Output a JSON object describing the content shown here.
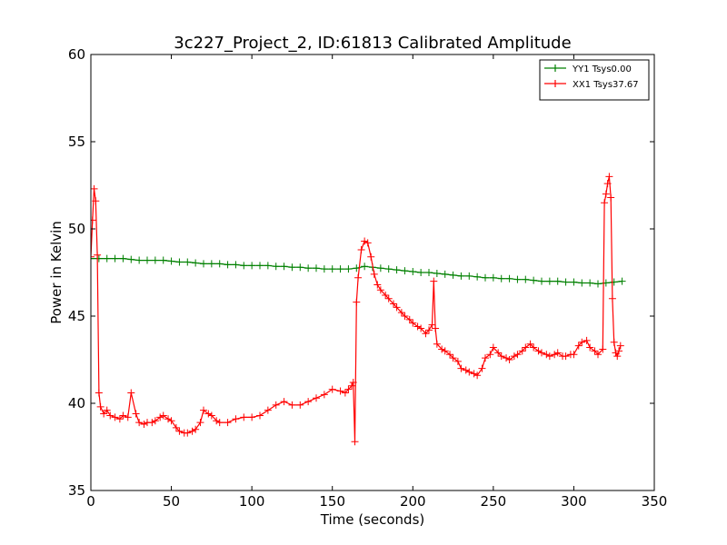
{
  "chart_data": {
    "type": "line",
    "title": "3c227_Project_2, ID:61813 Calibrated Amplitude",
    "xlabel": "Time (seconds)",
    "ylabel": "Power in Kelvin",
    "xlim": [
      0,
      350
    ],
    "ylim": [
      35,
      60
    ],
    "xticks": [
      "0",
      "50",
      "100",
      "150",
      "200",
      "250",
      "300",
      "350"
    ],
    "yticks": [
      "35",
      "40",
      "45",
      "50",
      "55",
      "60"
    ],
    "grid": false,
    "legend_position": "top-right",
    "marker": "+",
    "series": [
      {
        "name": "YY1 Tsys0.00",
        "color": "#008000",
        "x": [
          0,
          5,
          10,
          15,
          20,
          25,
          30,
          35,
          40,
          45,
          50,
          55,
          60,
          65,
          70,
          75,
          80,
          85,
          90,
          95,
          100,
          105,
          110,
          115,
          120,
          125,
          130,
          135,
          140,
          145,
          150,
          155,
          160,
          165,
          170,
          175,
          180,
          185,
          190,
          195,
          200,
          205,
          210,
          215,
          220,
          225,
          230,
          235,
          240,
          245,
          250,
          255,
          260,
          265,
          270,
          275,
          280,
          285,
          290,
          295,
          300,
          305,
          310,
          315,
          320,
          325,
          330
        ],
        "y": [
          48.3,
          48.3,
          48.3,
          48.3,
          48.3,
          48.25,
          48.2,
          48.2,
          48.2,
          48.2,
          48.15,
          48.1,
          48.1,
          48.05,
          48.0,
          48.0,
          48.0,
          47.95,
          47.95,
          47.9,
          47.9,
          47.9,
          47.9,
          47.85,
          47.85,
          47.8,
          47.8,
          47.75,
          47.75,
          47.7,
          47.7,
          47.7,
          47.7,
          47.75,
          47.85,
          47.8,
          47.75,
          47.7,
          47.65,
          47.6,
          47.55,
          47.5,
          47.5,
          47.45,
          47.4,
          47.35,
          47.3,
          47.3,
          47.25,
          47.2,
          47.2,
          47.15,
          47.15,
          47.1,
          47.1,
          47.05,
          47.0,
          47.0,
          47.0,
          46.95,
          46.95,
          46.9,
          46.9,
          46.85,
          46.9,
          46.95,
          47.0
        ]
      },
      {
        "name": "XX1 Tsys37.67",
        "color": "#ff0000",
        "x": [
          0,
          1,
          2,
          3,
          4,
          5,
          6,
          8,
          10,
          12,
          15,
          18,
          20,
          23,
          25,
          28,
          30,
          33,
          35,
          38,
          40,
          43,
          45,
          48,
          50,
          53,
          55,
          58,
          60,
          63,
          65,
          68,
          70,
          73,
          75,
          78,
          80,
          85,
          90,
          95,
          100,
          105,
          110,
          115,
          120,
          125,
          130,
          135,
          140,
          145,
          150,
          155,
          158,
          160,
          162,
          163,
          164,
          165,
          166,
          168,
          170,
          172,
          174,
          176,
          178,
          180,
          183,
          185,
          188,
          190,
          193,
          195,
          198,
          200,
          203,
          205,
          208,
          210,
          212,
          213,
          214,
          215,
          218,
          220,
          223,
          225,
          228,
          230,
          233,
          235,
          238,
          240,
          243,
          245,
          248,
          250,
          253,
          255,
          258,
          260,
          263,
          265,
          268,
          270,
          273,
          275,
          278,
          280,
          283,
          285,
          288,
          290,
          293,
          295,
          298,
          300,
          303,
          305,
          308,
          310,
          313,
          315,
          318,
          319,
          320,
          321,
          322,
          323,
          324,
          325,
          326,
          327,
          328,
          329
        ],
        "y": [
          48.4,
          50.5,
          52.3,
          51.6,
          48.5,
          40.6,
          39.8,
          39.4,
          39.6,
          39.3,
          39.2,
          39.1,
          39.3,
          39.2,
          40.6,
          39.4,
          38.9,
          38.8,
          38.9,
          38.9,
          39.0,
          39.2,
          39.3,
          39.1,
          39.0,
          38.6,
          38.4,
          38.3,
          38.3,
          38.4,
          38.5,
          38.9,
          39.6,
          39.4,
          39.3,
          39.0,
          38.9,
          38.9,
          39.1,
          39.2,
          39.2,
          39.3,
          39.6,
          39.9,
          40.1,
          39.9,
          39.9,
          40.1,
          40.3,
          40.5,
          40.8,
          40.7,
          40.6,
          40.8,
          41.0,
          41.2,
          37.8,
          45.8,
          47.2,
          48.8,
          49.3,
          49.2,
          48.4,
          47.4,
          46.8,
          46.5,
          46.2,
          46.0,
          45.7,
          45.5,
          45.2,
          45.0,
          44.8,
          44.6,
          44.4,
          44.3,
          44.0,
          44.2,
          44.5,
          47.0,
          44.3,
          43.4,
          43.1,
          43.0,
          42.8,
          42.6,
          42.4,
          42.0,
          41.9,
          41.8,
          41.7,
          41.6,
          42.0,
          42.6,
          42.8,
          43.2,
          42.9,
          42.7,
          42.6,
          42.5,
          42.7,
          42.8,
          43.0,
          43.2,
          43.4,
          43.2,
          43.0,
          42.9,
          42.8,
          42.7,
          42.8,
          42.9,
          42.7,
          42.7,
          42.8,
          42.8,
          43.3,
          43.5,
          43.6,
          43.2,
          43.0,
          42.8,
          43.1,
          51.5,
          52.0,
          52.6,
          53.0,
          51.8,
          46.0,
          43.5,
          42.9,
          42.7,
          43.0,
          43.3
        ]
      }
    ]
  }
}
